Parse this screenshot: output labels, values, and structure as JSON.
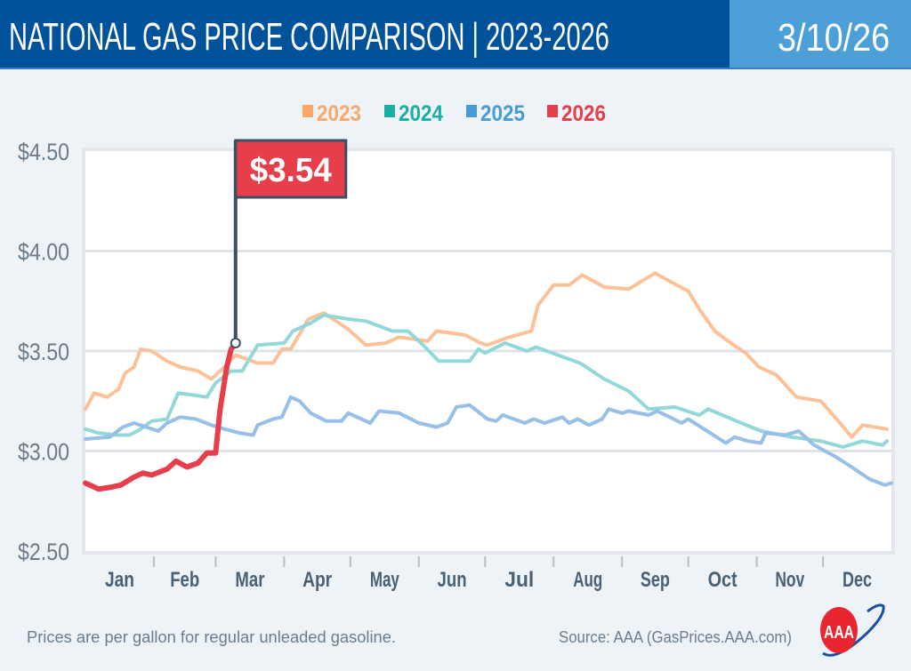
{
  "header": {
    "title": "NATIONAL GAS PRICE COMPARISON | 2023-2026",
    "date": "3/10/26",
    "colors": {
      "title_bg": "#00529b",
      "date_bg": "#4d9fd8"
    }
  },
  "footer": {
    "note": "Prices are per gallon for regular unleaded gasoline.",
    "source": "Source: AAA (GasPrices.AAA.com)",
    "logo_text": "AAA"
  },
  "chart_data": {
    "type": "line",
    "title": "NATIONAL GAS PRICE COMPARISON | 2023-2026",
    "xlabel": "",
    "ylabel": "",
    "x_unit": "day of year",
    "xlim": [
      0,
      365
    ],
    "ylim": [
      2.5,
      4.5
    ],
    "y_ticks": [
      2.5,
      3.0,
      3.5,
      4.0,
      4.5
    ],
    "y_tick_labels": [
      "$2.50",
      "$3.00",
      "$3.50",
      "$4.00",
      "$4.50"
    ],
    "x_tick_labels": [
      "Jan",
      "Feb",
      "Mar",
      "Apr",
      "May",
      "Jun",
      "Jul",
      "Aug",
      "Sep",
      "Oct",
      "Nov",
      "Dec"
    ],
    "grid": true,
    "legend_position": "top-center",
    "callout": {
      "label": "$3.54",
      "series": "2026",
      "x": 68,
      "y": 3.54
    },
    "series": [
      {
        "name": "2023",
        "color": "#f9a86a",
        "line_color": "#fcc196",
        "points": [
          [
            0,
            3.21
          ],
          [
            4,
            3.29
          ],
          [
            10,
            3.27
          ],
          [
            15,
            3.31
          ],
          [
            18,
            3.39
          ],
          [
            22,
            3.42
          ],
          [
            25,
            3.51
          ],
          [
            30,
            3.5
          ],
          [
            37,
            3.45
          ],
          [
            43,
            3.42
          ],
          [
            51,
            3.4
          ],
          [
            57,
            3.36
          ],
          [
            62,
            3.41
          ],
          [
            68,
            3.48
          ],
          [
            78,
            3.44
          ],
          [
            85,
            3.44
          ],
          [
            89,
            3.51
          ],
          [
            93,
            3.51
          ],
          [
            101,
            3.66
          ],
          [
            108,
            3.69
          ],
          [
            119,
            3.61
          ],
          [
            127,
            3.53
          ],
          [
            136,
            3.54
          ],
          [
            142,
            3.57
          ],
          [
            155,
            3.55
          ],
          [
            159,
            3.6
          ],
          [
            172,
            3.58
          ],
          [
            179,
            3.54
          ],
          [
            182,
            3.53
          ],
          [
            192,
            3.57
          ],
          [
            202,
            3.6
          ],
          [
            205,
            3.73
          ],
          [
            212,
            3.83
          ],
          [
            219,
            3.83
          ],
          [
            225,
            3.88
          ],
          [
            235,
            3.82
          ],
          [
            246,
            3.81
          ],
          [
            258,
            3.89
          ],
          [
            266,
            3.84
          ],
          [
            273,
            3.8
          ],
          [
            278,
            3.71
          ],
          [
            285,
            3.6
          ],
          [
            291,
            3.55
          ],
          [
            299,
            3.49
          ],
          [
            305,
            3.42
          ],
          [
            313,
            3.38
          ],
          [
            322,
            3.27
          ],
          [
            333,
            3.25
          ],
          [
            341,
            3.15
          ],
          [
            347,
            3.07
          ],
          [
            352,
            3.13
          ],
          [
            363,
            3.11
          ]
        ]
      },
      {
        "name": "2024",
        "color": "#1aafa5",
        "line_color": "#93d8d8",
        "points": [
          [
            0,
            3.11
          ],
          [
            6,
            3.09
          ],
          [
            14,
            3.08
          ],
          [
            20,
            3.08
          ],
          [
            25,
            3.11
          ],
          [
            30,
            3.15
          ],
          [
            37,
            3.16
          ],
          [
            42,
            3.29
          ],
          [
            49,
            3.28
          ],
          [
            55,
            3.27
          ],
          [
            59,
            3.34
          ],
          [
            66,
            3.4
          ],
          [
            71,
            3.4
          ],
          [
            78,
            3.53
          ],
          [
            90,
            3.54
          ],
          [
            94,
            3.6
          ],
          [
            102,
            3.64
          ],
          [
            108,
            3.68
          ],
          [
            119,
            3.66
          ],
          [
            127,
            3.65
          ],
          [
            139,
            3.6
          ],
          [
            146,
            3.6
          ],
          [
            152,
            3.54
          ],
          [
            160,
            3.45
          ],
          [
            167,
            3.45
          ],
          [
            174,
            3.45
          ],
          [
            178,
            3.51
          ],
          [
            181,
            3.49
          ],
          [
            190,
            3.54
          ],
          [
            200,
            3.5
          ],
          [
            204,
            3.52
          ],
          [
            219,
            3.46
          ],
          [
            224,
            3.44
          ],
          [
            235,
            3.36
          ],
          [
            246,
            3.3
          ],
          [
            255,
            3.21
          ],
          [
            267,
            3.22
          ],
          [
            278,
            3.18
          ],
          [
            282,
            3.21
          ],
          [
            297,
            3.14
          ],
          [
            306,
            3.1
          ],
          [
            320,
            3.07
          ],
          [
            333,
            3.05
          ],
          [
            343,
            3.02
          ],
          [
            352,
            3.05
          ],
          [
            361,
            3.03
          ],
          [
            363,
            3.05
          ]
        ]
      },
      {
        "name": "2025",
        "color": "#4a9ad6",
        "line_color": "#97bfe7",
        "points": [
          [
            0,
            3.06
          ],
          [
            11,
            3.07
          ],
          [
            17,
            3.12
          ],
          [
            22,
            3.14
          ],
          [
            33,
            3.1
          ],
          [
            37,
            3.14
          ],
          [
            43,
            3.17
          ],
          [
            50,
            3.16
          ],
          [
            57,
            3.13
          ],
          [
            63,
            3.11
          ],
          [
            70,
            3.09
          ],
          [
            76,
            3.08
          ],
          [
            78,
            3.13
          ],
          [
            85,
            3.16
          ],
          [
            89,
            3.17
          ],
          [
            93,
            3.27
          ],
          [
            97,
            3.25
          ],
          [
            102,
            3.19
          ],
          [
            109,
            3.15
          ],
          [
            116,
            3.15
          ],
          [
            119,
            3.19
          ],
          [
            129,
            3.14
          ],
          [
            133,
            3.2
          ],
          [
            142,
            3.19
          ],
          [
            151,
            3.14
          ],
          [
            159,
            3.12
          ],
          [
            164,
            3.14
          ],
          [
            168,
            3.22
          ],
          [
            174,
            3.23
          ],
          [
            182,
            3.16
          ],
          [
            186,
            3.15
          ],
          [
            189,
            3.18
          ],
          [
            199,
            3.14
          ],
          [
            203,
            3.16
          ],
          [
            208,
            3.14
          ],
          [
            216,
            3.17
          ],
          [
            219,
            3.14
          ],
          [
            223,
            3.16
          ],
          [
            228,
            3.13
          ],
          [
            234,
            3.16
          ],
          [
            237,
            3.21
          ],
          [
            243,
            3.19
          ],
          [
            246,
            3.2
          ],
          [
            255,
            3.18
          ],
          [
            259,
            3.2
          ],
          [
            270,
            3.14
          ],
          [
            273,
            3.16
          ],
          [
            283,
            3.09
          ],
          [
            290,
            3.04
          ],
          [
            294,
            3.07
          ],
          [
            300,
            3.05
          ],
          [
            306,
            3.04
          ],
          [
            308,
            3.09
          ],
          [
            317,
            3.08
          ],
          [
            323,
            3.1
          ],
          [
            330,
            3.03
          ],
          [
            340,
            2.97
          ],
          [
            347,
            2.92
          ],
          [
            355,
            2.86
          ],
          [
            362,
            2.83
          ],
          [
            365,
            2.84
          ]
        ]
      },
      {
        "name": "2026",
        "color": "#e63f4b",
        "line_color": "#e63f4b",
        "points": [
          [
            0,
            2.84
          ],
          [
            6,
            2.81
          ],
          [
            12,
            2.82
          ],
          [
            16,
            2.83
          ],
          [
            22,
            2.87
          ],
          [
            26,
            2.89
          ],
          [
            30,
            2.88
          ],
          [
            37,
            2.91
          ],
          [
            41,
            2.95
          ],
          [
            46,
            2.92
          ],
          [
            51,
            2.94
          ],
          [
            55,
            2.99
          ],
          [
            59,
            2.99
          ],
          [
            61,
            3.21
          ],
          [
            64,
            3.42
          ],
          [
            66,
            3.51
          ],
          [
            68,
            3.54
          ]
        ]
      }
    ]
  }
}
